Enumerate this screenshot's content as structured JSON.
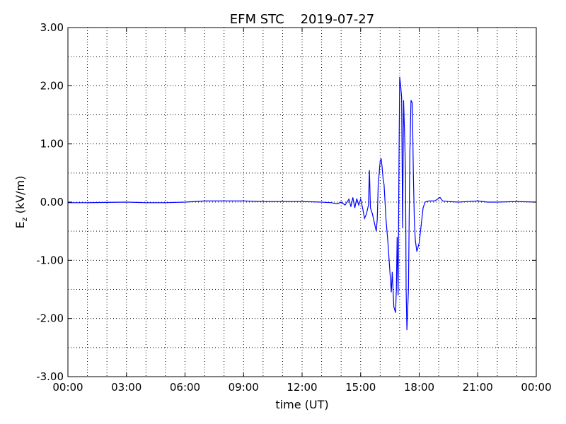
{
  "chart_data": {
    "type": "line",
    "title": "EFM STC    2019-07-27",
    "xlabel": "time (UT)",
    "ylabel": [
      "E",
      "z",
      " (kV/m)"
    ],
    "xlim": [
      0,
      24
    ],
    "ylim": [
      -3,
      3
    ],
    "xticks": [
      {
        "value": 0,
        "label": "00:00"
      },
      {
        "value": 3,
        "label": "03:00"
      },
      {
        "value": 6,
        "label": "06:00"
      },
      {
        "value": 9,
        "label": "09:00"
      },
      {
        "value": 12,
        "label": "12:00"
      },
      {
        "value": 15,
        "label": "15:00"
      },
      {
        "value": 18,
        "label": "18:00"
      },
      {
        "value": 21,
        "label": "21:00"
      },
      {
        "value": 24,
        "label": "00:00"
      }
    ],
    "yticks": [
      {
        "value": -3,
        "label": "-3.00"
      },
      {
        "value": -2,
        "label": "-2.00"
      },
      {
        "value": -1,
        "label": "-1.00"
      },
      {
        "value": 0,
        "label": "0.00"
      },
      {
        "value": 1,
        "label": "1.00"
      },
      {
        "value": 2,
        "label": "2.00"
      },
      {
        "value": 3,
        "label": "3.00"
      }
    ],
    "xgrid": [
      1,
      2,
      3,
      4,
      5,
      6,
      7,
      8,
      9,
      10,
      11,
      12,
      13,
      14,
      15,
      16,
      17,
      18,
      19,
      20,
      21,
      22,
      23
    ],
    "ygrid": [
      -2.5,
      -2,
      -1.5,
      -1,
      -0.5,
      0,
      0.5,
      1,
      1.5,
      2,
      2.5
    ],
    "grid": true,
    "series": [
      {
        "name": "Ez",
        "color": "#0000ff",
        "x": [
          0,
          1,
          2,
          3,
          4,
          5,
          6,
          7,
          8,
          9,
          10,
          11,
          12,
          13,
          13.5,
          13.8,
          14.0,
          14.2,
          14.4,
          14.5,
          14.6,
          14.7,
          14.8,
          14.9,
          15.0,
          15.1,
          15.2,
          15.3,
          15.4,
          15.45,
          15.5,
          15.6,
          15.7,
          15.8,
          15.85,
          15.9,
          16.0,
          16.05,
          16.1,
          16.15,
          16.2,
          16.3,
          16.4,
          16.5,
          16.57,
          16.62,
          16.7,
          16.79,
          16.83,
          16.87,
          16.92,
          16.96,
          17.0,
          17.05,
          17.1,
          17.15,
          17.2,
          17.25,
          17.3,
          17.33,
          17.37,
          17.45,
          17.52,
          17.58,
          17.65,
          17.7,
          17.75,
          17.8,
          17.88,
          18.0,
          18.1,
          18.2,
          18.3,
          18.5,
          18.8,
          19.07,
          19.2,
          19.5,
          20,
          20.5,
          21,
          21.5,
          22,
          23,
          24
        ],
        "values": [
          -0.01,
          -0.01,
          -0.005,
          0,
          -0.01,
          -0.01,
          0,
          0.02,
          0.02,
          0.02,
          0.01,
          0.01,
          0.01,
          0,
          -0.01,
          -0.03,
          0,
          -0.05,
          0.05,
          -0.08,
          0.08,
          -0.1,
          0.06,
          -0.05,
          0.05,
          -0.1,
          -0.28,
          -0.2,
          -0.05,
          0.55,
          -0.1,
          -0.2,
          -0.35,
          -0.5,
          -0.3,
          0.3,
          0.7,
          0.75,
          0.6,
          0.4,
          0.3,
          -0.3,
          -0.7,
          -1.2,
          -1.55,
          -1.2,
          -1.8,
          -1.9,
          -1.5,
          -0.6,
          -1.6,
          0.5,
          2.15,
          2.0,
          1.8,
          -0.45,
          1.75,
          1.2,
          0.5,
          -1.5,
          -2.2,
          -1.5,
          0.8,
          1.75,
          1.7,
          0.5,
          -0.3,
          -0.65,
          -0.85,
          -0.7,
          -0.4,
          -0.1,
          0,
          0.02,
          0.02,
          0.08,
          0.02,
          0.01,
          0,
          0.01,
          0.02,
          0,
          0,
          0.01,
          0
        ]
      }
    ]
  }
}
